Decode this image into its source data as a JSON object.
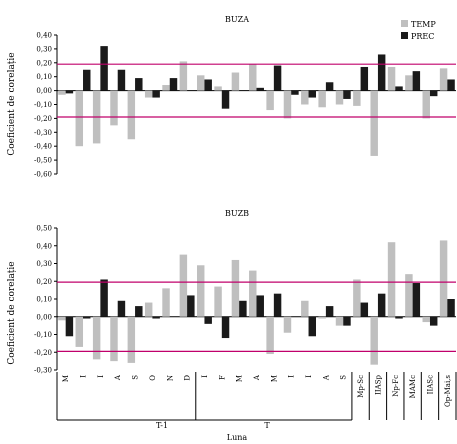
{
  "legend": [
    {
      "label": "TEMP",
      "color": "#bfbfbf"
    },
    {
      "label": "PREC",
      "color": "#1a1a1a"
    }
  ],
  "colors": {
    "temp": "#bfbfbf",
    "prec": "#1a1a1a",
    "threshold": "#c0006b",
    "axis": "#000000"
  },
  "chart_data": [
    {
      "type": "bar",
      "title": "BUZA",
      "ylabel": "Coeficient de corelație",
      "ylim": [
        -0.6,
        0.4
      ],
      "yticks": [
        "0,40",
        "0,30",
        "0,20",
        "0,10",
        "0,00",
        "-0,10",
        "-0,20",
        "-0,30",
        "-0,40",
        "-0,50",
        "-0,60"
      ],
      "threshold_lines": [
        0.19,
        -0.19
      ],
      "series": [
        {
          "name": "TEMP",
          "values": [
            -0.03,
            -0.4,
            -0.38,
            -0.25,
            -0.35,
            -0.05,
            0.04,
            0.21,
            0.11,
            0.03,
            0.13,
            0.19,
            -0.14,
            -0.2,
            -0.1,
            -0.12,
            -0.1,
            -0.11,
            -0.47,
            0.17,
            0.11,
            -0.2,
            0.16
          ]
        },
        {
          "name": "PREC",
          "values": [
            -0.02,
            0.15,
            0.32,
            0.15,
            0.09,
            -0.05,
            0.09,
            0.0,
            0.08,
            -0.13,
            0.0,
            0.02,
            0.18,
            -0.03,
            -0.05,
            0.06,
            -0.06,
            0.17,
            0.26,
            0.03,
            0.14,
            -0.04,
            0.08
          ]
        }
      ]
    },
    {
      "type": "bar",
      "title": "BUZB",
      "ylabel": "Coeficient de corelație",
      "ylim": [
        -0.3,
        0.5
      ],
      "yticks": [
        "0,50",
        "0,40",
        "0,30",
        "0,20",
        "0,10",
        "0,00",
        "-0,10",
        "-0,20",
        "-0,30"
      ],
      "threshold_lines": [
        0.195,
        -0.195
      ],
      "categories": [
        "M",
        "I",
        "I",
        "A",
        "S",
        "O",
        "N",
        "D",
        "I",
        "F",
        "M",
        "A",
        "M",
        "I",
        "I",
        "A",
        "S",
        "Mp-Sc",
        "IIASp",
        "Np-Fc",
        "MAMc",
        "IIASc",
        "Op-Mai,s"
      ],
      "xlabel": "Luna",
      "groups": [
        {
          "label": "T-1"
        },
        {
          "label": "T"
        }
      ],
      "series": [
        {
          "name": "TEMP",
          "values": [
            -0.02,
            -0.17,
            -0.24,
            -0.25,
            -0.26,
            0.08,
            0.16,
            0.35,
            0.29,
            0.17,
            0.32,
            0.26,
            -0.21,
            -0.09,
            0.09,
            -0.01,
            -0.05,
            0.21,
            -0.27,
            0.42,
            0.24,
            -0.03,
            0.43
          ]
        },
        {
          "name": "PREC",
          "values": [
            -0.11,
            -0.01,
            0.21,
            0.09,
            0.06,
            -0.01,
            0.0,
            0.12,
            -0.04,
            -0.12,
            0.09,
            0.12,
            0.13,
            0.0,
            -0.11,
            0.06,
            -0.05,
            0.08,
            0.13,
            -0.01,
            0.19,
            -0.05,
            0.1
          ]
        }
      ]
    }
  ]
}
